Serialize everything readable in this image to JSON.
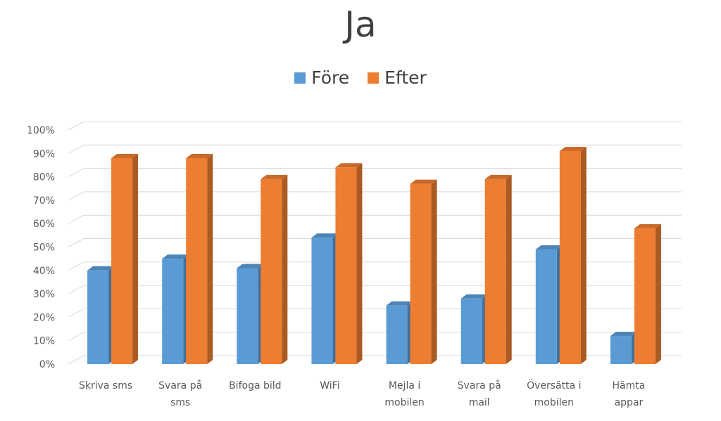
{
  "chart_data": {
    "type": "bar",
    "title": "Ja",
    "categories": [
      [
        "Skriva sms"
      ],
      [
        "Svara på",
        "sms"
      ],
      [
        "Bifoga bild"
      ],
      [
        "WiFi"
      ],
      [
        "Mejla i",
        "mobilen"
      ],
      [
        "Svara på",
        "mail"
      ],
      [
        "Översätta i",
        "mobilen"
      ],
      [
        "Hämta",
        "appar"
      ]
    ],
    "series": [
      {
        "name": "Före",
        "color": "#5B9BD5",
        "values": [
          40,
          45,
          41,
          54,
          25,
          28,
          49,
          12
        ]
      },
      {
        "name": "Efter",
        "color": "#ED7D31",
        "values": [
          88,
          88,
          79,
          84,
          77,
          79,
          91,
          58
        ]
      }
    ],
    "y_ticks": [
      "0%",
      "10%",
      "20%",
      "30%",
      "40%",
      "50%",
      "60%",
      "70%",
      "80%",
      "90%",
      "100%"
    ],
    "ylim": [
      0,
      100
    ],
    "grid": true,
    "legend_position": "top",
    "style": "3d-clustered-column"
  }
}
